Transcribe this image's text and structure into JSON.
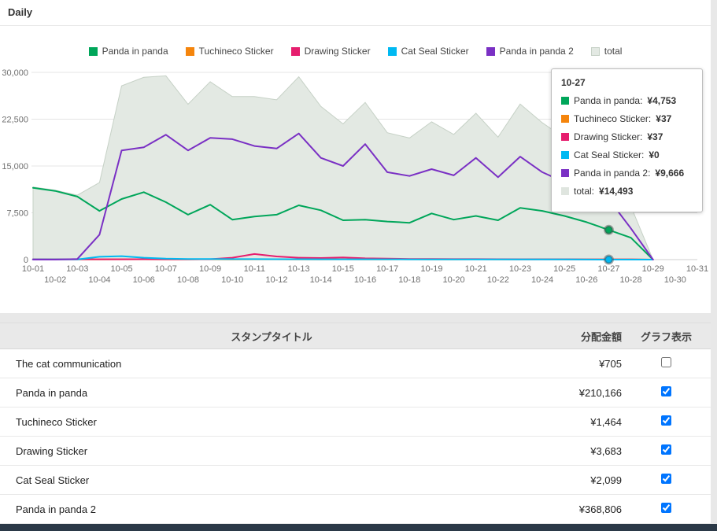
{
  "header": {
    "title": "Daily"
  },
  "chart_data": {
    "type": "area",
    "title": "Daily",
    "xlabel": "",
    "ylabel": "",
    "ylim": [
      0,
      30000
    ],
    "yticks": [
      0,
      7500,
      15000,
      22500,
      30000
    ],
    "grid": "horizontal",
    "legend_position": "top",
    "x": [
      "10-01",
      "10-02",
      "10-03",
      "10-04",
      "10-05",
      "10-06",
      "10-07",
      "10-08",
      "10-09",
      "10-10",
      "10-11",
      "10-12",
      "10-13",
      "10-14",
      "10-15",
      "10-16",
      "10-17",
      "10-18",
      "10-19",
      "10-20",
      "10-21",
      "10-22",
      "10-23",
      "10-24",
      "10-25",
      "10-26",
      "10-27",
      "10-28",
      "10-29",
      "10-30",
      "10-31"
    ],
    "series": [
      {
        "name": "Panda in panda",
        "type": "line",
        "color": "#00a65a",
        "values": [
          11500,
          11000,
          10100,
          7800,
          9700,
          10800,
          9200,
          7200,
          8800,
          6400,
          6900,
          7200,
          8700,
          7900,
          6300,
          6400,
          6100,
          5900,
          7400,
          6400,
          7000,
          6300,
          8300,
          7800,
          7000,
          6000,
          4753,
          3500,
          0,
          null,
          null
        ]
      },
      {
        "name": "Tuchineco Sticker",
        "type": "line",
        "color": "#f5850c",
        "values": [
          50,
          45,
          40,
          40,
          45,
          50,
          40,
          40,
          45,
          40,
          50,
          45,
          40,
          40,
          45,
          40,
          40,
          45,
          40,
          40,
          45,
          40,
          40,
          45,
          40,
          40,
          37,
          20,
          0,
          null,
          null
        ]
      },
      {
        "name": "Drawing Sticker",
        "type": "line",
        "color": "#e61e6e",
        "values": [
          60,
          55,
          50,
          50,
          55,
          60,
          50,
          50,
          60,
          300,
          900,
          500,
          300,
          250,
          350,
          200,
          150,
          100,
          90,
          80,
          70,
          60,
          55,
          50,
          45,
          40,
          37,
          20,
          0,
          null,
          null
        ]
      },
      {
        "name": "Cat Seal Sticker",
        "type": "line",
        "color": "#00b9f2",
        "values": [
          30,
          30,
          30,
          450,
          550,
          300,
          150,
          100,
          90,
          80,
          70,
          60,
          60,
          55,
          50,
          50,
          45,
          40,
          40,
          35,
          35,
          30,
          30,
          30,
          20,
          10,
          0,
          0,
          0,
          null,
          null
        ]
      },
      {
        "name": "Panda in panda 2",
        "type": "line",
        "color": "#7a30c4",
        "values": [
          0,
          0,
          100,
          4000,
          17500,
          18000,
          20000,
          17500,
          19500,
          19300,
          18200,
          17800,
          20200,
          16300,
          15000,
          18500,
          14000,
          13400,
          14500,
          13500,
          16300,
          13200,
          16500,
          14000,
          12400,
          11000,
          9666,
          5000,
          0,
          null,
          null
        ]
      },
      {
        "name": "total",
        "type": "area",
        "color": "#e3e9e3",
        "stroke": "#c6d1c6",
        "values": [
          11640,
          11130,
          10320,
          12340,
          27850,
          29210,
          29440,
          24890,
          28495,
          26120,
          26120,
          25605,
          29300,
          24545,
          21745,
          25190,
          20335,
          19485,
          22070,
          20055,
          23450,
          19630,
          24925,
          21925,
          19505,
          17090,
          14493,
          8540,
          0,
          null,
          null
        ]
      }
    ],
    "highlight": {
      "x": "10-27",
      "markers": [
        "Panda in panda",
        "Cat Seal Sticker"
      ]
    }
  },
  "tooltip": {
    "title": "10-27",
    "rows": [
      {
        "label": "Panda in panda",
        "value": "¥4,753",
        "color": "#00a65a"
      },
      {
        "label": "Tuchineco Sticker",
        "value": "¥37",
        "color": "#f5850c"
      },
      {
        "label": "Drawing Sticker",
        "value": "¥37",
        "color": "#e61e6e"
      },
      {
        "label": "Cat Seal Sticker",
        "value": "¥0",
        "color": "#00b9f2"
      },
      {
        "label": "Panda in panda 2",
        "value": "¥9,666",
        "color": "#7a30c4"
      },
      {
        "label": "total",
        "value": "¥14,493",
        "color": "#dfe5df"
      }
    ]
  },
  "table": {
    "columns": [
      "スタンプタイトル",
      "分配金額",
      "グラフ表示"
    ],
    "rows": [
      {
        "title": "The cat communication",
        "amount": "¥705",
        "checked": false
      },
      {
        "title": "Panda in panda",
        "amount": "¥210,166",
        "checked": true
      },
      {
        "title": "Tuchineco Sticker",
        "amount": "¥1,464",
        "checked": true
      },
      {
        "title": "Drawing Sticker",
        "amount": "¥3,683",
        "checked": true
      },
      {
        "title": "Cat Seal Sticker",
        "amount": "¥2,099",
        "checked": true
      },
      {
        "title": "Panda in panda 2",
        "amount": "¥368,806",
        "checked": true
      }
    ]
  },
  "colors": {
    "footer_bar": "#2b3947",
    "table_header_bg": "#e9e9e9",
    "grid_line": "#e4e4e4",
    "axis_line": "#cfcfcf"
  }
}
